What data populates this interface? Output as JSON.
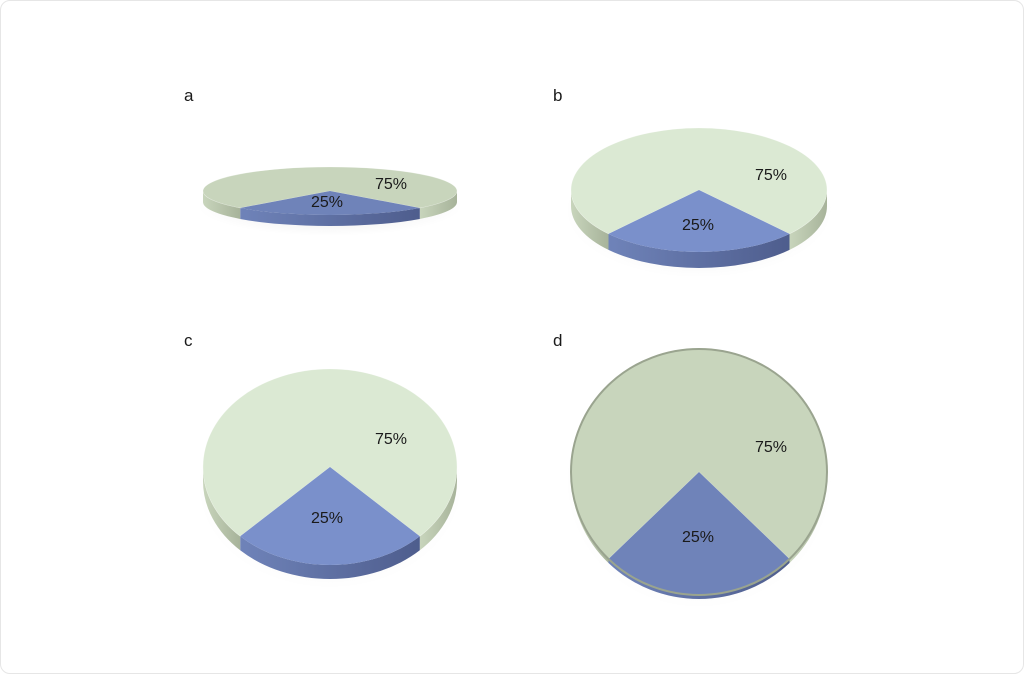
{
  "colors": {
    "major_top": "#dbe9d3",
    "major_top_dark": "#c8d5bc",
    "major_side": "#a7b39a",
    "minor_top": "#7a90cb",
    "minor_top_dark": "#6f83b9",
    "minor_side": "#4e5d8d"
  },
  "chart_data": [
    {
      "type": "pie",
      "panel": "a",
      "tilt_view": "nearly edge-on",
      "slices": [
        {
          "label": "25%",
          "value": 25
        },
        {
          "label": "75%",
          "value": 75
        }
      ]
    },
    {
      "type": "pie",
      "panel": "b",
      "tilt_view": "low tilt",
      "slices": [
        {
          "label": "25%",
          "value": 25
        },
        {
          "label": "75%",
          "value": 75
        }
      ]
    },
    {
      "type": "pie",
      "panel": "c",
      "tilt_view": "medium tilt",
      "slices": [
        {
          "label": "25%",
          "value": 25
        },
        {
          "label": "75%",
          "value": 75
        }
      ]
    },
    {
      "type": "pie",
      "panel": "d",
      "tilt_view": "top-down",
      "slices": [
        {
          "label": "25%",
          "value": 25
        },
        {
          "label": "75%",
          "value": 75
        }
      ]
    }
  ]
}
